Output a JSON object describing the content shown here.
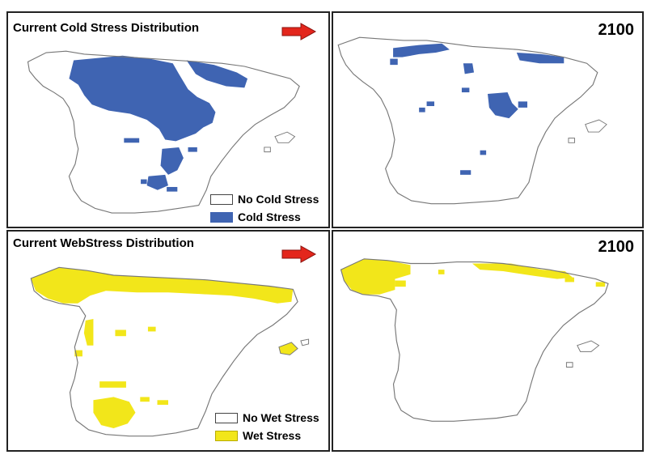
{
  "panels": {
    "cold_current": {
      "title": "Current Cold Stress Distribution"
    },
    "cold_future": {
      "year": "2100"
    },
    "wet_current": {
      "title": "Current WebStress Distribution"
    },
    "wet_future": {
      "year": "2100"
    }
  },
  "legends": {
    "cold": [
      {
        "label": "No Cold Stress",
        "color": "#ffffff"
      },
      {
        "label": "Cold Stress",
        "color": "#3f64b2"
      }
    ],
    "wet": [
      {
        "label": "No Wet Stress",
        "color": "#ffffff"
      },
      {
        "label": "Wet Stress",
        "color": "#f2e61a"
      }
    ]
  },
  "colors": {
    "cold": "#3f64b2",
    "wet": "#f2e61a",
    "arrow": "#e3261c",
    "outline": "#777777"
  }
}
